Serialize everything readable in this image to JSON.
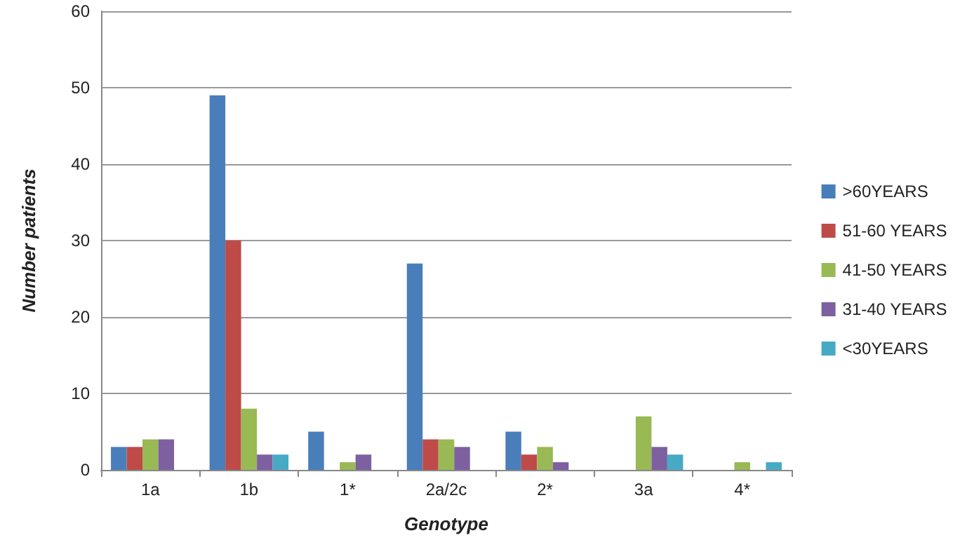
{
  "chart_data": {
    "type": "bar",
    "xlabel": "Genotype",
    "ylabel": "Number patients",
    "categories": [
      "1a",
      "1b",
      "1*",
      "2a/2c",
      "2*",
      "3a",
      "4*"
    ],
    "series": [
      {
        "name": ">60YEARS",
        "color": "#4a7ebb",
        "values": [
          3,
          49,
          5,
          27,
          5,
          0,
          0
        ]
      },
      {
        "name": "51-60 YEARS",
        "color": "#be4b48",
        "values": [
          3,
          30,
          0,
          4,
          2,
          0,
          0
        ]
      },
      {
        "name": "41-50 YEARS",
        "color": "#98b954",
        "values": [
          4,
          8,
          1,
          4,
          3,
          7,
          1
        ]
      },
      {
        "name": "31-40 YEARS",
        "color": "#7d60a0",
        "values": [
          4,
          2,
          2,
          3,
          1,
          3,
          0
        ]
      },
      {
        "name": "<30YEARS",
        "color": "#46aac5",
        "values": [
          0,
          2,
          0,
          0,
          0,
          2,
          1
        ]
      }
    ],
    "ylim": [
      0,
      60
    ],
    "yticks": [
      0,
      10,
      20,
      30,
      40,
      50,
      60
    ],
    "grid": "y",
    "legend": "right"
  }
}
